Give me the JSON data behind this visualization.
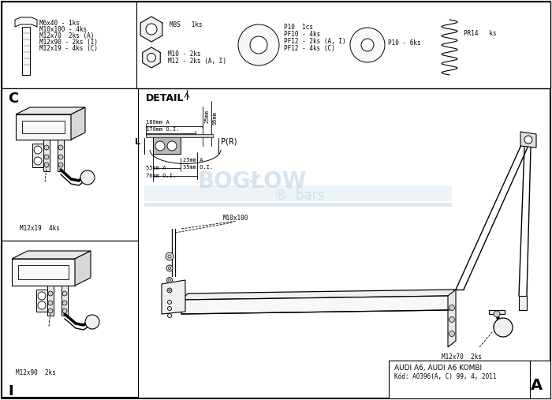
{
  "bg_color": "#ffffff",
  "border_color": "#000000",
  "watermark_color": "#b8cfe0",
  "title_text": "DETAIL",
  "bottom_right_text1": "AUDI A6, AUDI A6 KOMBI",
  "bottom_right_text2": "Kód: A0396(A, C) 99, 4, 2011",
  "label_C": "C",
  "label_I": "I",
  "label_A": "A",
  "label_L": "L",
  "label_PR": "P(R)",
  "dim1": "180mm A",
  "dim2": "170mm O.I.",
  "dim3": "25mm A",
  "dim4": "35mm O.I.",
  "dim5": "55mm A",
  "dim6": "76mm O.I.",
  "dim7": "25mm",
  "dim8": "95mm",
  "m12x19_label": "M12x19  4ks",
  "m12x90_label": "M12x90  2ks",
  "m12x70_label": "M12x70  2ks",
  "m10x100_label": "M10x100"
}
